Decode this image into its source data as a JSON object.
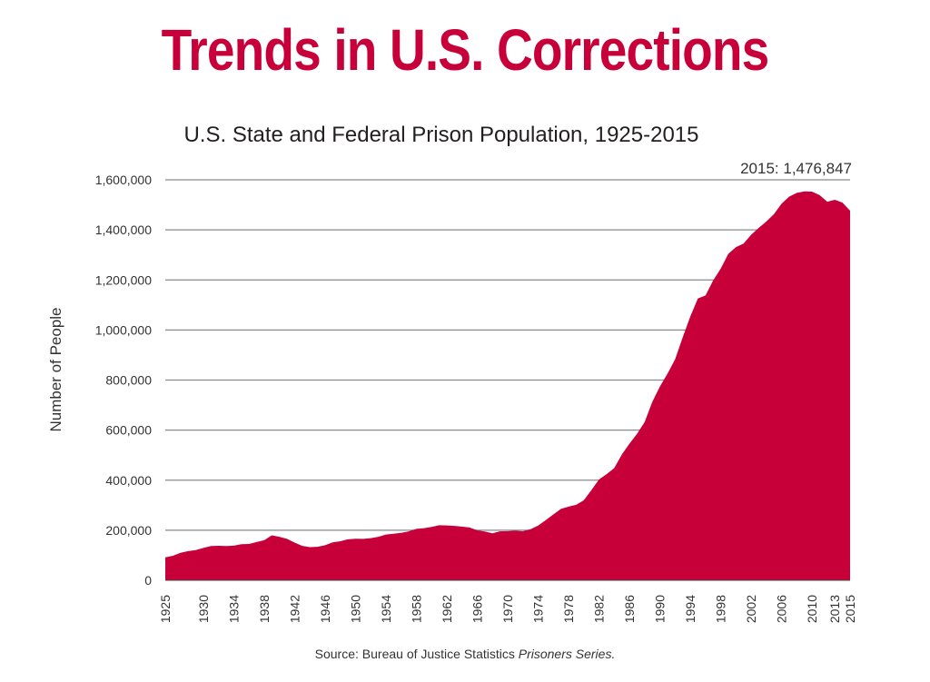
{
  "title": "Trends in U.S. Corrections",
  "chart_data": {
    "type": "area",
    "title": "U.S. State and Federal Prison Population, 1925-2015",
    "ylabel": "Number of People",
    "xlabel": "",
    "ylim": [
      0,
      1600000
    ],
    "yticks": [
      0,
      200000,
      400000,
      600000,
      800000,
      1000000,
      1200000,
      1400000,
      1600000
    ],
    "ytick_labels": [
      "0",
      "200,000",
      "400,000",
      "600,000",
      "800,000",
      "1,000,000",
      "1,200,000",
      "1,400,000",
      "1,600,000"
    ],
    "xticks": [
      "1925",
      "1930",
      "1934",
      "1938",
      "1942",
      "1946",
      "1950",
      "1954",
      "1958",
      "1962",
      "1966",
      "1970",
      "1974",
      "1978",
      "1982",
      "1986",
      "1990",
      "1994",
      "1998",
      "2002",
      "2006",
      "2010",
      "2013",
      "2015"
    ],
    "color": "#c8003a",
    "grid": true,
    "annotation": "2015: 1,476,847",
    "series": [
      {
        "x": [
          1925,
          1926,
          1927,
          1928,
          1929,
          1930,
          1931,
          1932,
          1933,
          1934,
          1935,
          1936,
          1937,
          1938,
          1939,
          1940,
          1941,
          1942,
          1943,
          1944,
          1945,
          1946,
          1947,
          1948,
          1949,
          1950,
          1951,
          1952,
          1953,
          1954,
          1955,
          1956,
          1957,
          1958,
          1959,
          1960,
          1961,
          1962,
          1963,
          1964,
          1965,
          1966,
          1967,
          1968,
          1969,
          1970,
          1971,
          1972,
          1973,
          1974,
          1975,
          1976,
          1977,
          1978,
          1979,
          1980,
          1981,
          1982,
          1983,
          1984,
          1985,
          1986,
          1987,
          1988,
          1989,
          1990,
          1991,
          1992,
          1993,
          1994,
          1995,
          1996,
          1997,
          1998,
          1999,
          2000,
          2001,
          2002,
          2003,
          2004,
          2005,
          2006,
          2007,
          2008,
          2009,
          2010,
          2011,
          2012,
          2013,
          2014,
          2015
        ],
        "values": [
          91669,
          97991,
          109983,
          116390,
          120496,
          129453,
          137082,
          137997,
          136810,
          138316,
          144180,
          145038,
          152741,
          160285,
          179818,
          173706,
          165439,
          150384,
          137220,
          132456,
          133649,
          140079,
          151304,
          155977,
          163749,
          166123,
          165680,
          168233,
          173579,
          182901,
          185780,
          189565,
          195414,
          205643,
          208105,
          212953,
          220149,
          218830,
          217283,
          214336,
          210895,
          199654,
          194896,
          187914,
          196007,
          196429,
          198061,
          196092,
          204211,
          218466,
          240593,
          262833,
          285456,
          294396,
          301470,
          319598,
          360029,
          402914,
          423898,
          448264,
          502507,
          545378,
          585084,
          631990,
          712364,
          773919,
          825559,
          882500,
          970444,
          1053738,
          1125874,
          1137722,
          1197590,
          1245402,
          1304074,
          1331278,
          1345217,
          1380516,
          1408361,
          1433728,
          1462866,
          1504598,
          1532850,
          1547742,
          1553574,
          1552669,
          1538847,
          1512430,
          1520403,
          1508636,
          1476847
        ]
      }
    ]
  },
  "source": {
    "label": "Source",
    "text": ": Bureau of Justice Statistics ",
    "italic": "Prisoners Series."
  }
}
